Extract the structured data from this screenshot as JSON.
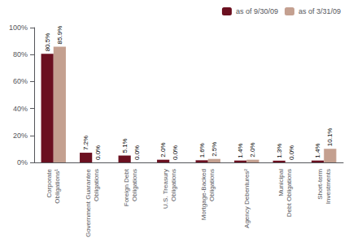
{
  "chart_data": {
    "type": "bar",
    "categories": [
      "Corporate\nObligations¹",
      "Government Guarantee\nObligations",
      "Foreign Debt\nObligations",
      "U.S. Treasury\nObligations",
      "Mortgage-Backed\nObligations",
      "Agency Debentures²",
      "Municipal\nDebt Obligations",
      "Short-term\nInvestments"
    ],
    "series": [
      {
        "name": "as of 9/30/09",
        "color": "#6b1020",
        "values": [
          80.5,
          7.2,
          5.1,
          2.0,
          1.6,
          1.4,
          1.3,
          1.4
        ],
        "value_labels": [
          "80.5%",
          "7.2%",
          "5.1%",
          "2.0%",
          "1.6%",
          "1.4%",
          "1.3%",
          "1.4%"
        ]
      },
      {
        "name": "as of 3/31/09",
        "color": "#c4a090",
        "values": [
          85.9,
          0.0,
          0.0,
          0.0,
          2.5,
          2.0,
          0.0,
          10.1
        ],
        "value_labels": [
          "85.9%",
          "0.0%",
          "0.0%",
          "0.0%",
          "2.5%",
          "2.0%",
          "0.0%",
          "10.1%"
        ]
      }
    ],
    "ylim": [
      0,
      100
    ],
    "yticks": [
      {
        "value": 0,
        "label": "0%"
      },
      {
        "value": 20,
        "label": "20%"
      },
      {
        "value": 40,
        "label": "40%"
      },
      {
        "value": 60,
        "label": "60%"
      },
      {
        "value": 80,
        "label": "80%"
      },
      {
        "value": 100,
        "label": "100%"
      }
    ],
    "grid": false,
    "legend": "upper right",
    "data_labels": true
  }
}
